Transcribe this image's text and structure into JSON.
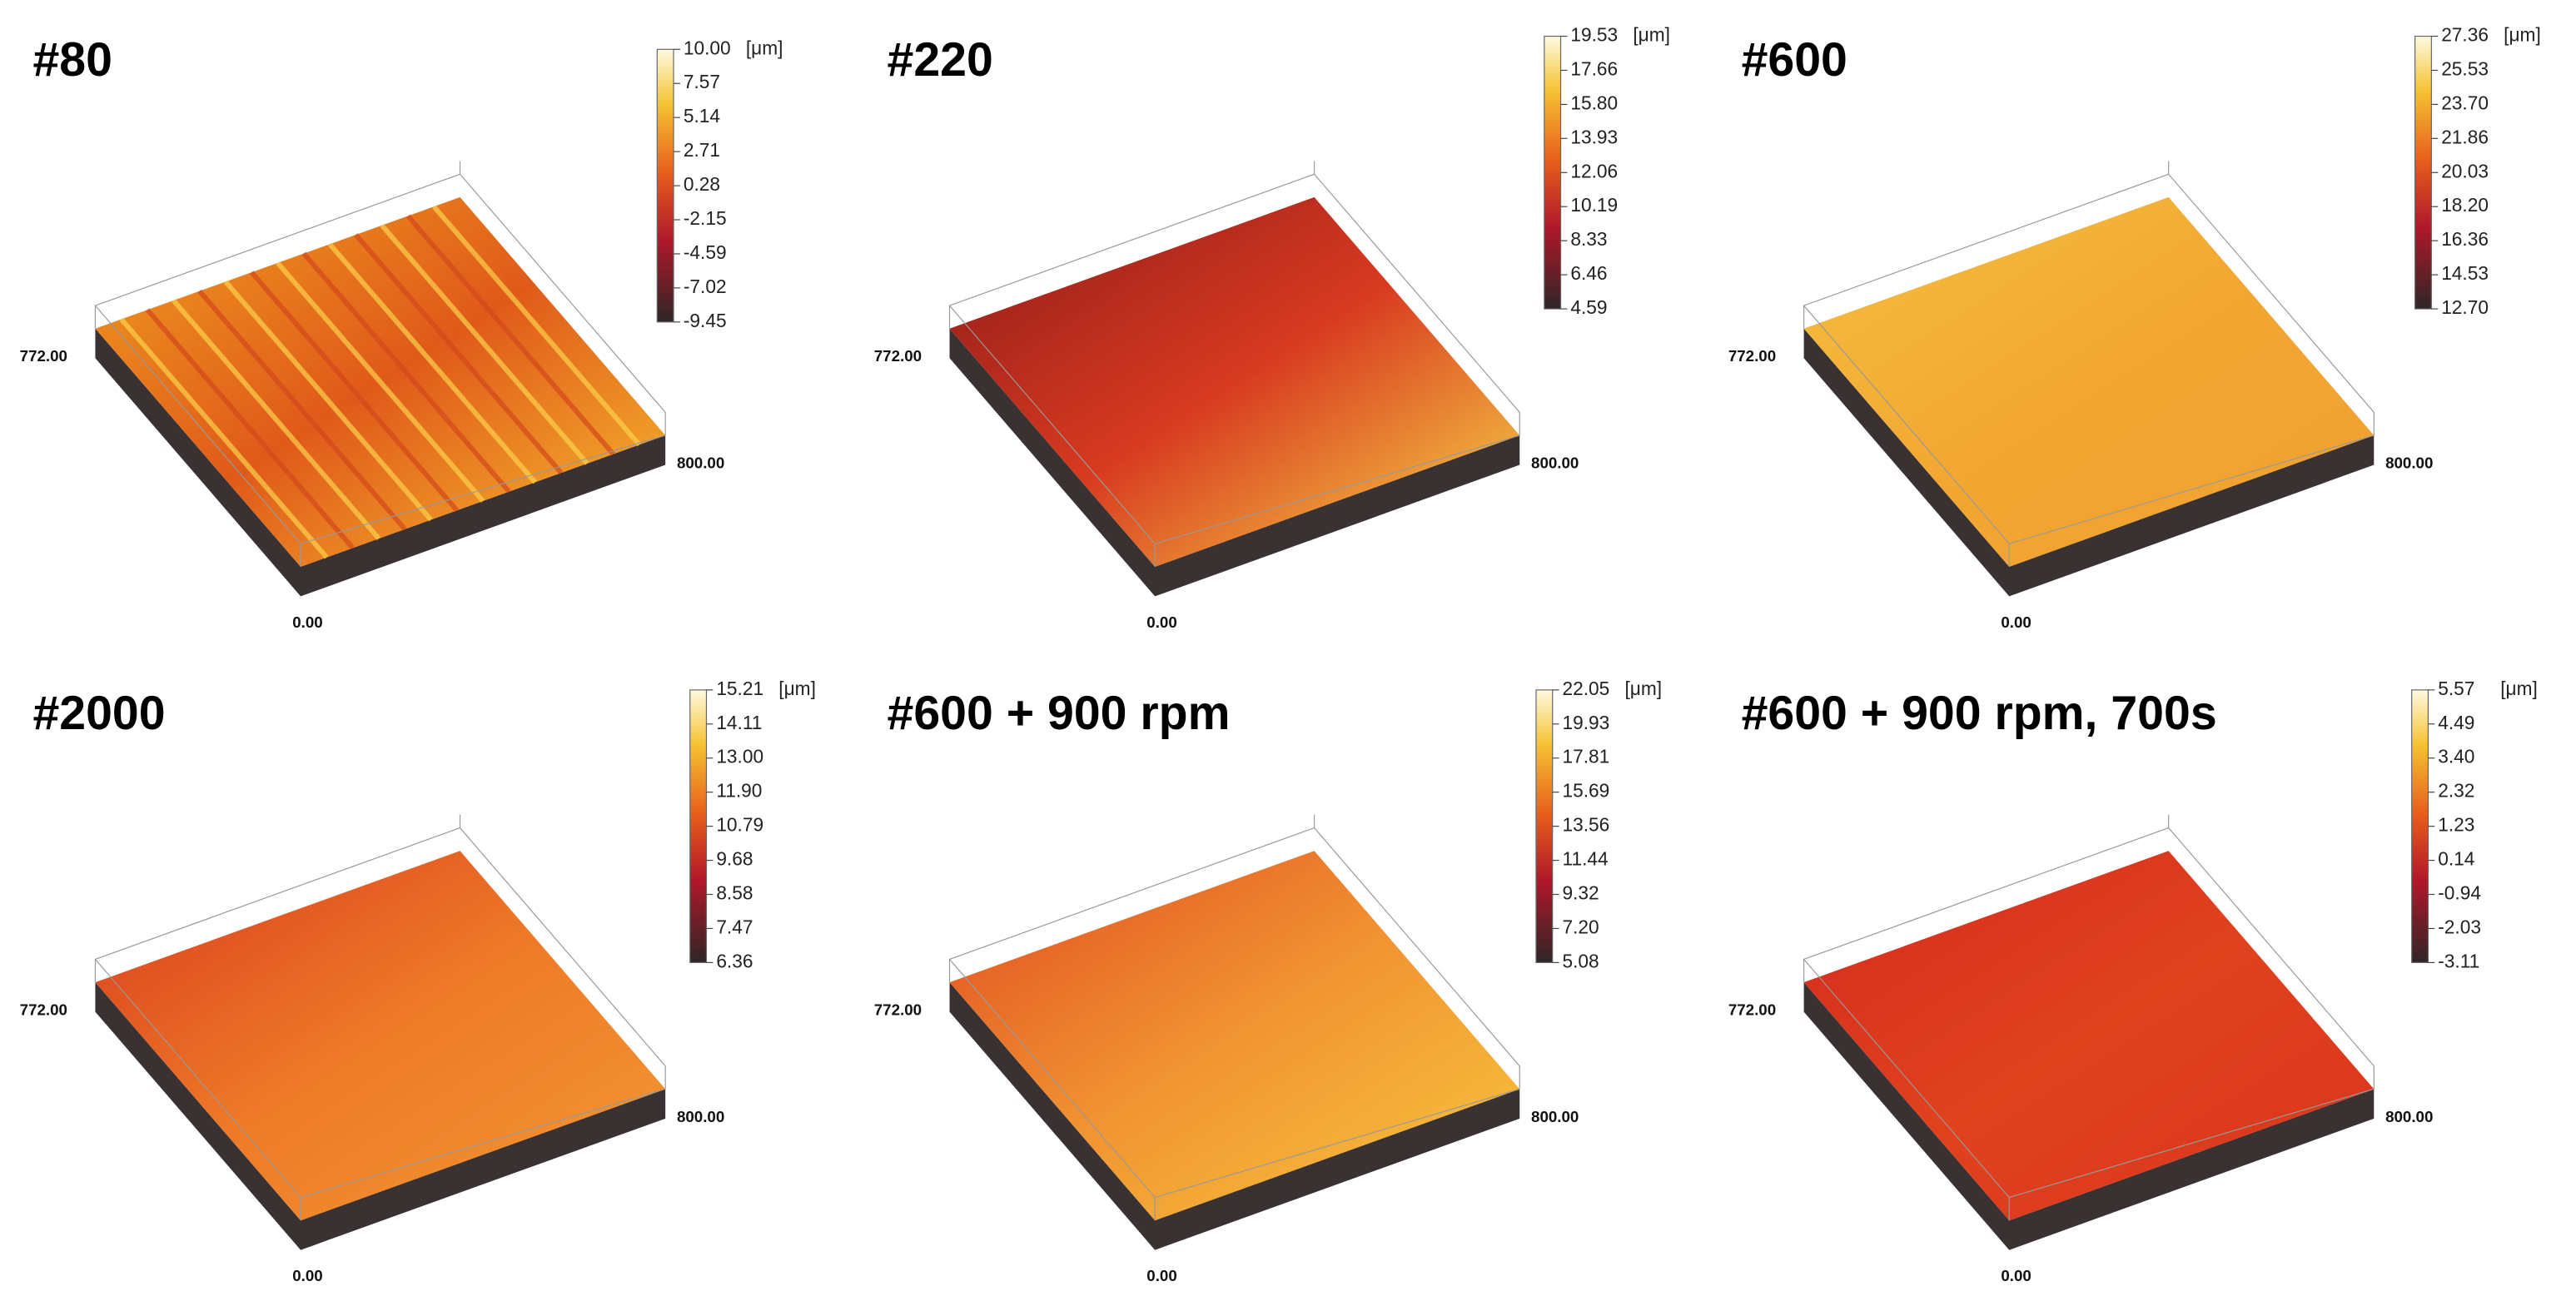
{
  "panels": [
    {
      "title": "#80",
      "unit": "[μm]",
      "scale": [
        "10.00",
        "7.57",
        "5.14",
        "2.71",
        "0.28",
        "-2.15",
        "-4.59",
        "-7.02",
        "-9.45"
      ],
      "axis": {
        "y": "772.00",
        "x": "800.00",
        "origin": "0.00"
      }
    },
    {
      "title": "#220",
      "unit": "[μm]",
      "scale": [
        "19.53",
        "17.66",
        "15.80",
        "13.93",
        "12.06",
        "10.19",
        "8.33",
        "6.46",
        "4.59"
      ],
      "axis": {
        "y": "772.00",
        "x": "800.00",
        "origin": "0.00"
      }
    },
    {
      "title": "#600",
      "unit": "[μm]",
      "scale": [
        "27.36",
        "25.53",
        "23.70",
        "21.86",
        "20.03",
        "18.20",
        "16.36",
        "14.53",
        "12.70"
      ],
      "axis": {
        "y": "772.00",
        "x": "800.00",
        "origin": "0.00"
      }
    },
    {
      "title": "#2000",
      "unit": "[μm]",
      "scale": [
        "15.21",
        "14.11",
        "13.00",
        "11.90",
        "10.79",
        "9.68",
        "8.58",
        "7.47",
        "6.36"
      ],
      "axis": {
        "y": "772.00",
        "x": "800.00",
        "origin": "0.00"
      }
    },
    {
      "title": "#600 + 900 rpm",
      "unit": "[μm]",
      "scale": [
        "22.05",
        "19.93",
        "17.81",
        "15.69",
        "13.56",
        "11.44",
        "9.32",
        "7.20",
        "5.08"
      ],
      "axis": {
        "y": "772.00",
        "x": "800.00",
        "origin": "0.00"
      }
    },
    {
      "title": "#600 + 900 rpm, 700s",
      "unit": "[μm]",
      "scale": [
        "5.57",
        "4.49",
        "3.40",
        "2.32",
        "1.23",
        "0.14",
        "-0.94",
        "-2.03",
        "-3.11"
      ],
      "axis": {
        "y": "772.00",
        "x": "800.00",
        "origin": "0.00"
      }
    }
  ]
}
